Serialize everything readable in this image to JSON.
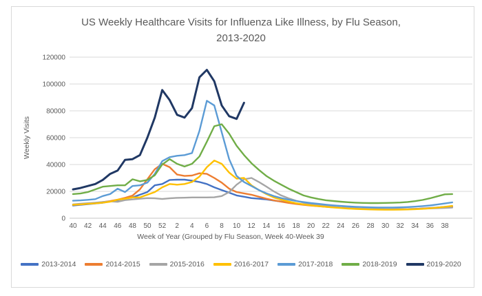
{
  "title": {
    "line1": "US Weekly Healthcare Visits for Influenza Like Illness, by Flu Season,",
    "line2": "2013-2020"
  },
  "chart_data": {
    "type": "line",
    "title": "US Weekly Healthcare Visits for Influenza Like Illness, by Flu Season, 2013-2020",
    "xlabel": "Week of Year (Grouped by Flu Season, Week 40-Week 39",
    "ylabel": "Weekly Visits",
    "ylim": [
      0,
      120000
    ],
    "yticks": [
      0,
      20000,
      40000,
      60000,
      80000,
      100000,
      120000
    ],
    "grid": true,
    "legend_position": "bottom",
    "x_weeks": [
      40,
      41,
      42,
      43,
      44,
      45,
      46,
      47,
      48,
      49,
      50,
      51,
      52,
      1,
      2,
      3,
      4,
      5,
      6,
      7,
      8,
      9,
      10,
      11,
      12,
      13,
      14,
      15,
      16,
      17,
      18,
      19,
      20,
      21,
      22,
      23,
      24,
      25,
      26,
      27,
      28,
      29,
      30,
      31,
      32,
      33,
      34,
      35,
      36,
      37,
      38,
      39
    ],
    "xtick_labels": [
      "40",
      "42",
      "44",
      "46",
      "48",
      "50",
      "52",
      "2",
      "4",
      "6",
      "8",
      "10",
      "12",
      "14",
      "16",
      "18",
      "20",
      "22",
      "24",
      "26",
      "28",
      "30",
      "32",
      "34",
      "36",
      "38"
    ],
    "series": [
      {
        "name": "2013-2014",
        "color": "#4472C4",
        "values": [
          9500,
          10000,
          10500,
          11000,
          11500,
          12500,
          13500,
          15000,
          15500,
          17500,
          19500,
          24500,
          25500,
          28500,
          28700,
          28700,
          28000,
          27000,
          25500,
          23000,
          21000,
          19000,
          17000,
          16000,
          15000,
          14500,
          14000,
          13200,
          12400,
          11600,
          10800,
          10200,
          9600,
          9100,
          8600,
          8200,
          7800,
          7500,
          7200,
          7000,
          6800,
          6700,
          6600,
          6600,
          6700,
          6800,
          7000,
          7300,
          7600,
          8000,
          8400,
          8800
        ]
      },
      {
        "name": "2014-2015",
        "color": "#ED7D31",
        "values": [
          10000,
          10300,
          10800,
          11300,
          12000,
          12800,
          13800,
          15200,
          16800,
          21500,
          29000,
          36500,
          40500,
          38000,
          32500,
          31500,
          31800,
          33500,
          33000,
          30000,
          26500,
          22000,
          19500,
          18500,
          17500,
          16000,
          14500,
          13300,
          12300,
          11400,
          10600,
          10000,
          9400,
          8900,
          8500,
          8100,
          7800,
          7500,
          7200,
          7000,
          6800,
          6700,
          6600,
          6600,
          6700,
          6800,
          7000,
          7200,
          7500,
          7800,
          8100,
          8300
        ]
      },
      {
        "name": "2015-2016",
        "color": "#A5A5A5",
        "values": [
          10300,
          10800,
          11200,
          11600,
          12100,
          12500,
          12200,
          13500,
          14000,
          14500,
          15000,
          14800,
          14300,
          14800,
          15200,
          15300,
          15500,
          15500,
          15500,
          15600,
          16500,
          19500,
          25000,
          29000,
          30000,
          27000,
          23600,
          20000,
          17000,
          14800,
          13000,
          11600,
          10500,
          9700,
          9000,
          8500,
          8000,
          7700,
          7400,
          7100,
          6900,
          6800,
          6700,
          6700,
          6700,
          6800,
          6900,
          7100,
          7300,
          7500,
          7700,
          7900
        ]
      },
      {
        "name": "2016-2017",
        "color": "#FFC000",
        "values": [
          10000,
          10300,
          10700,
          11100,
          11600,
          12300,
          13800,
          14500,
          15500,
          15500,
          17500,
          19500,
          23000,
          25500,
          25000,
          25500,
          27000,
          31000,
          38000,
          43000,
          40500,
          34000,
          29500,
          30000,
          24500,
          21000,
          18000,
          15500,
          13800,
          12400,
          11200,
          10300,
          9600,
          9000,
          8500,
          8000,
          7600,
          7200,
          6900,
          6700,
          6500,
          6400,
          6300,
          6300,
          6400,
          6500,
          6700,
          7000,
          7400,
          7900,
          8500,
          9200
        ]
      },
      {
        "name": "2017-2018",
        "color": "#5B9BD5",
        "values": [
          13000,
          13300,
          13700,
          14200,
          16500,
          18000,
          22000,
          19500,
          24000,
          24500,
          26500,
          33000,
          42500,
          45500,
          46500,
          47000,
          48500,
          65000,
          87500,
          84000,
          64000,
          44000,
          31500,
          27000,
          24000,
          21000,
          18500,
          16500,
          15000,
          13800,
          12800,
          12000,
          11300,
          10700,
          10100,
          9600,
          9200,
          8800,
          8500,
          8300,
          8100,
          8000,
          8000,
          8000,
          8100,
          8300,
          8600,
          9000,
          9500,
          10200,
          11000,
          11800
        ]
      },
      {
        "name": "2018-2019",
        "color": "#70AD47",
        "values": [
          18000,
          18400,
          19500,
          21500,
          23500,
          24000,
          24500,
          24500,
          29000,
          27500,
          28500,
          32000,
          40000,
          44000,
          40500,
          38500,
          40500,
          46000,
          57000,
          68500,
          70000,
          63000,
          54000,
          47000,
          41000,
          36000,
          31500,
          28000,
          25000,
          22000,
          19500,
          17000,
          15500,
          14300,
          13400,
          12800,
          12300,
          11900,
          11600,
          11400,
          11300,
          11300,
          11400,
          11500,
          11700,
          12100,
          12700,
          13600,
          14800,
          16300,
          17800,
          18000
        ]
      },
      {
        "name": "2019-2020",
        "color": "#203864",
        "values": [
          21500,
          22500,
          24000,
          25500,
          28500,
          33000,
          35500,
          43500,
          44000,
          47000,
          60000,
          75000,
          95500,
          88000,
          77000,
          75000,
          82000,
          105000,
          110500,
          102000,
          84000,
          76000,
          74000,
          86000
        ]
      }
    ]
  }
}
